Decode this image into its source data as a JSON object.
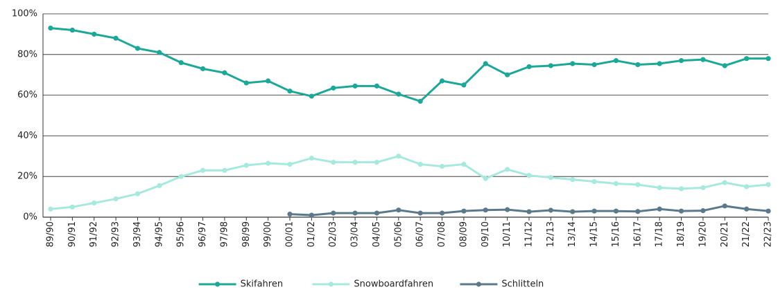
{
  "chart_data": {
    "type": "line",
    "categories": [
      "89/90",
      "90/91",
      "91/92",
      "92/93",
      "93/94",
      "94/95",
      "95/96",
      "96/97",
      "97/98",
      "98/99",
      "99/00",
      "00/01",
      "01/02",
      "02/03",
      "03/04",
      "04/05",
      "05/06",
      "06/07",
      "07/08",
      "08/09",
      "09/10",
      "10/11",
      "11/12",
      "12/13",
      "13/14",
      "14/15",
      "15/16",
      "16/17",
      "17/18",
      "18/19",
      "19/20",
      "20/21",
      "21/22",
      "22/23"
    ],
    "series": [
      {
        "name": "Skifahren",
        "color": "#1aa898",
        "values": [
          93,
          92,
          90,
          88,
          83,
          81,
          76,
          73,
          71,
          66,
          67,
          62,
          59.5,
          63.5,
          64.5,
          64.5,
          60.5,
          57,
          67,
          65,
          75.5,
          70,
          74,
          74.5,
          75.5,
          75,
          77,
          75,
          75.5,
          77,
          77.5,
          74.5,
          78,
          78
        ]
      },
      {
        "name": "Snowboardfahren",
        "color": "#a6e9df",
        "values": [
          4,
          5,
          7,
          9,
          11.5,
          15.5,
          20,
          23,
          23,
          25.5,
          26.5,
          26,
          29,
          27,
          27,
          27,
          30,
          26,
          25,
          26,
          19,
          23.5,
          20.5,
          19.5,
          18.5,
          17.5,
          16.5,
          16,
          14.5,
          14,
          14.5,
          17,
          15,
          16
        ]
      },
      {
        "name": "Schlitteln",
        "color": "#5a7a8c",
        "values": [
          null,
          null,
          null,
          null,
          null,
          null,
          null,
          null,
          null,
          null,
          null,
          1.5,
          1,
          2,
          2,
          2,
          3.5,
          2,
          2,
          3,
          3.5,
          3.7,
          2.7,
          3.4,
          2.7,
          3,
          3,
          2.8,
          4,
          3,
          3.2,
          5.5,
          4,
          3
        ]
      }
    ],
    "ylim": [
      0,
      100
    ],
    "yticks": [
      {
        "value": 0,
        "label": "0%"
      },
      {
        "value": 20,
        "label": "20%"
      },
      {
        "value": 40,
        "label": "40%"
      },
      {
        "value": 60,
        "label": "60%"
      },
      {
        "value": 80,
        "label": "80%"
      },
      {
        "value": 100,
        "label": "100%"
      }
    ],
    "grid": true,
    "legend": "bottom"
  }
}
